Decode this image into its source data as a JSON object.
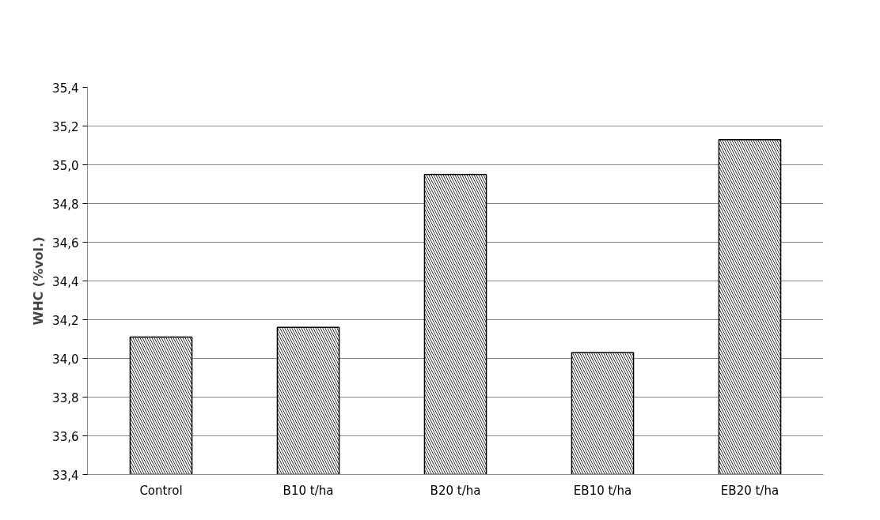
{
  "chart_data": {
    "type": "bar",
    "ylabel": "WHC (%vol.)",
    "categories": [
      "Control",
      "B10 t/ha",
      "B20 t/ha",
      "EB10 t/ha",
      "EB20 t/ha"
    ],
    "values": [
      34.11,
      34.16,
      34.95,
      34.03,
      35.13
    ],
    "color": "#ffffff",
    "ylim": [
      33.4,
      35.4
    ],
    "yticks": [
      {
        "value": 33.4,
        "label": "33,4"
      },
      {
        "value": 33.6,
        "label": "33,6"
      },
      {
        "value": 33.8,
        "label": "33,8"
      },
      {
        "value": 34.0,
        "label": "34,0"
      },
      {
        "value": 34.2,
        "label": "34,2"
      },
      {
        "value": 34.4,
        "label": "34,4"
      },
      {
        "value": 34.6,
        "label": "34,6"
      },
      {
        "value": 34.8,
        "label": "34,8"
      },
      {
        "value": 35.0,
        "label": "35,0"
      },
      {
        "value": 35.2,
        "label": "35,2"
      },
      {
        "value": 35.4,
        "label": "35,4"
      }
    ],
    "grid": "y"
  }
}
